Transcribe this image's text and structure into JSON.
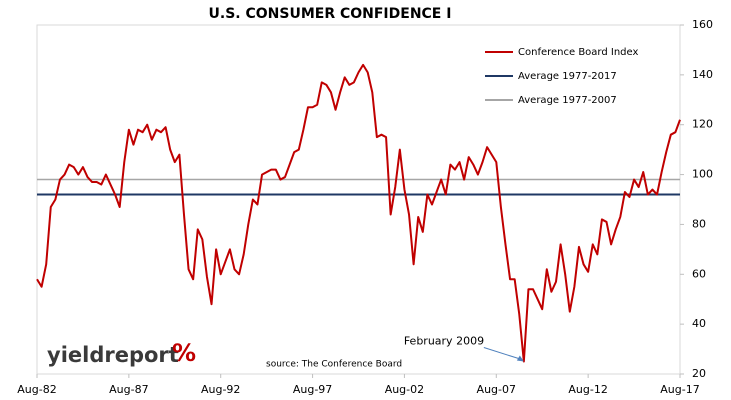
{
  "chart_data": {
    "type": "line",
    "title": "U.S. CONSUMER CONFIDENCE I",
    "x": [
      "1982-08",
      "1982-11",
      "1983-02",
      "1983-05",
      "1983-08",
      "1983-11",
      "1984-02",
      "1984-05",
      "1984-08",
      "1984-11",
      "1985-02",
      "1985-05",
      "1985-08",
      "1985-11",
      "1986-02",
      "1986-05",
      "1986-08",
      "1986-11",
      "1987-02",
      "1987-05",
      "1987-08",
      "1987-11",
      "1988-02",
      "1988-05",
      "1988-08",
      "1988-11",
      "1989-02",
      "1989-05",
      "1989-08",
      "1989-11",
      "1990-02",
      "1990-05",
      "1990-08",
      "1990-11",
      "1991-02",
      "1991-05",
      "1991-08",
      "1991-11",
      "1992-02",
      "1992-05",
      "1992-08",
      "1992-11",
      "1993-02",
      "1993-05",
      "1993-08",
      "1993-11",
      "1994-02",
      "1994-05",
      "1994-08",
      "1994-11",
      "1995-02",
      "1995-05",
      "1995-08",
      "1995-11",
      "1996-02",
      "1996-05",
      "1996-08",
      "1996-11",
      "1997-02",
      "1997-05",
      "1997-08",
      "1997-11",
      "1998-02",
      "1998-05",
      "1998-08",
      "1998-11",
      "1999-02",
      "1999-05",
      "1999-08",
      "1999-11",
      "2000-02",
      "2000-05",
      "2000-08",
      "2000-11",
      "2001-02",
      "2001-05",
      "2001-08",
      "2001-11",
      "2002-02",
      "2002-05",
      "2002-08",
      "2002-11",
      "2003-02",
      "2003-05",
      "2003-08",
      "2003-11",
      "2004-02",
      "2004-05",
      "2004-08",
      "2004-11",
      "2005-02",
      "2005-05",
      "2005-08",
      "2005-11",
      "2006-02",
      "2006-05",
      "2006-08",
      "2006-11",
      "2007-02",
      "2007-05",
      "2007-08",
      "2007-11",
      "2008-02",
      "2008-05",
      "2008-08",
      "2008-11",
      "2009-02",
      "2009-05",
      "2009-08",
      "2009-11",
      "2010-02",
      "2010-05",
      "2010-08",
      "2010-11",
      "2011-02",
      "2011-05",
      "2011-08",
      "2011-11",
      "2012-02",
      "2012-05",
      "2012-08",
      "2012-11",
      "2013-02",
      "2013-05",
      "2013-08",
      "2013-11",
      "2014-02",
      "2014-05",
      "2014-08",
      "2014-11",
      "2015-02",
      "2015-05",
      "2015-08",
      "2015-11",
      "2016-02",
      "2016-05",
      "2016-08",
      "2016-11",
      "2017-02",
      "2017-05",
      "2017-08"
    ],
    "series": [
      {
        "name": "Conference Board Index",
        "color": "#c00000",
        "values": [
          58,
          55,
          64,
          87,
          90,
          98,
          100,
          104,
          103,
          100,
          103,
          99,
          97,
          97,
          96,
          100,
          96,
          92,
          87,
          105,
          118,
          112,
          118,
          117,
          120,
          114,
          118,
          117,
          119,
          110,
          105,
          108,
          84,
          62,
          58,
          78,
          74,
          59,
          48,
          70,
          60,
          65,
          70,
          62,
          60,
          68,
          80,
          90,
          88,
          100,
          101,
          102,
          102,
          98,
          99,
          104,
          109,
          110,
          118,
          127,
          127,
          128,
          137,
          136,
          133,
          126,
          133,
          139,
          136,
          137,
          141,
          144,
          141,
          133,
          115,
          116,
          115,
          84,
          95,
          110,
          94,
          84,
          64,
          83,
          77,
          92,
          88,
          93,
          98,
          92,
          104,
          102,
          105,
          98,
          107,
          104,
          100,
          105,
          111,
          108,
          105,
          87,
          72,
          58,
          58,
          44,
          25,
          54,
          54,
          50,
          46,
          62,
          53,
          57,
          72,
          60,
          45,
          55,
          71,
          64,
          61,
          72,
          68,
          82,
          81,
          72,
          78,
          83,
          93,
          91,
          98,
          95,
          101,
          92,
          94,
          92,
          101,
          109,
          116,
          117,
          122
        ]
      }
    ],
    "hlines": [
      {
        "name": "Average 1977-2017",
        "color": "#1f3864",
        "value": 92
      },
      {
        "name": "Average 1977-2007",
        "color": "#a6a6a6",
        "value": 98
      }
    ],
    "xlim": [
      "1982-08",
      "2017-08"
    ],
    "xticks": [
      {
        "value": "1982-08",
        "label": "Aug-82"
      },
      {
        "value": "1987-08",
        "label": "Aug-87"
      },
      {
        "value": "1992-08",
        "label": "Aug-92"
      },
      {
        "value": "1997-08",
        "label": "Aug-97"
      },
      {
        "value": "2002-08",
        "label": "Aug-02"
      },
      {
        "value": "2007-08",
        "label": "Aug-07"
      },
      {
        "value": "2012-08",
        "label": "Aug-12"
      },
      {
        "value": "2017-08",
        "label": "Aug-17"
      }
    ],
    "ylim": [
      20,
      160
    ],
    "yticks": [
      20,
      40,
      60,
      80,
      100,
      120,
      140,
      160
    ],
    "annotations": [
      {
        "text": "February 2009",
        "x": "2009-02",
        "y": 25
      }
    ],
    "source": "source: The Conference Board",
    "logo": {
      "text": "yieldreport",
      "symbol": "%"
    }
  }
}
